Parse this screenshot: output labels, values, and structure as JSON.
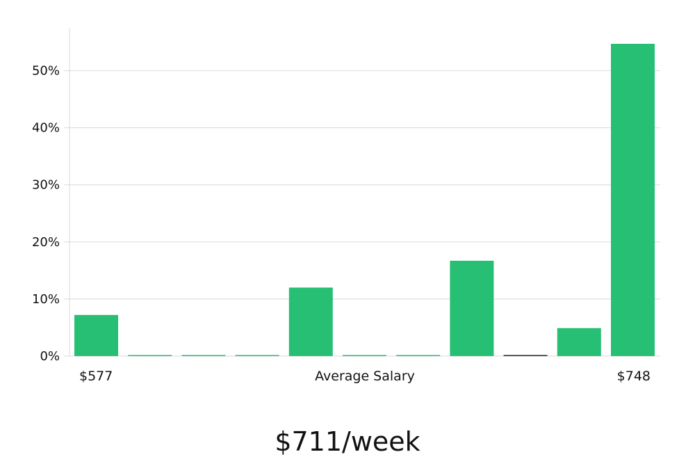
{
  "chart_data": {
    "type": "bar",
    "bins": 11,
    "values": [
      7.2,
      0.15,
      0.15,
      0.15,
      12.0,
      0.15,
      0.15,
      16.7,
      0.1,
      4.9,
      54.7
    ],
    "baseline_bin_colors": [
      "#27bf73",
      "#27bf73",
      "#27bf73",
      "#27bf73",
      "#27bf73",
      "#27bf73",
      "#27bf73",
      "#27bf73",
      "#222222",
      "#27bf73",
      "#27bf73"
    ],
    "ylim": [
      0,
      57.5
    ],
    "yticks": [
      "0%",
      "10%",
      "20%",
      "30%",
      "40%",
      "50%"
    ],
    "ytick_values": [
      0,
      10,
      20,
      30,
      40,
      50
    ],
    "x_min_label": "$577",
    "x_max_label": "$748",
    "xlabel": "Average Salary",
    "grid": true,
    "bar_color": "#27bf73",
    "grid_color": "#d9d9d9",
    "headline": "$711/week"
  }
}
